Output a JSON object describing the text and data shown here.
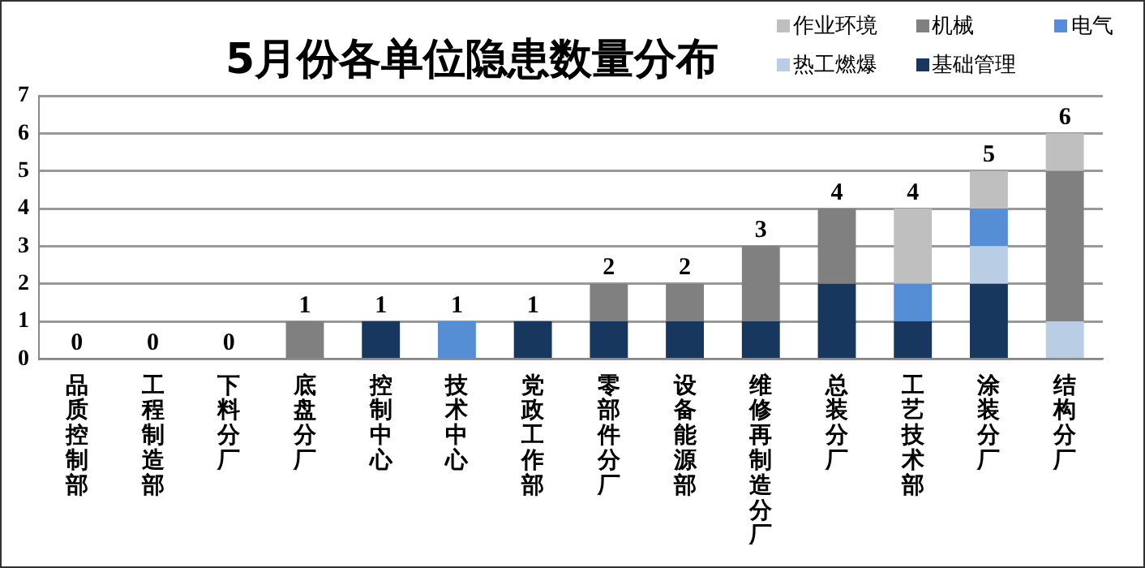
{
  "chart_data": {
    "type": "bar",
    "title": "5月份各单位隐患数量分布",
    "stacked": true,
    "categories": [
      "品质控制部",
      "工程制造部",
      "下料分厂",
      "底盘分厂",
      "控制中心",
      "技术中心",
      "党政工作部",
      "零部件分厂",
      "设备能源部",
      "维修再制造分厂",
      "总装分厂",
      "工艺技术部",
      "涂装分厂",
      "结构分厂"
    ],
    "series": [
      {
        "name": "基础管理",
        "color": "#17375e",
        "values": [
          0,
          0,
          0,
          0,
          1,
          0,
          1,
          1,
          1,
          1,
          2,
          1,
          2,
          0
        ]
      },
      {
        "name": "热工燃爆",
        "color": "#b9cde5",
        "values": [
          0,
          0,
          0,
          0,
          0,
          0,
          0,
          0,
          0,
          0,
          0,
          0,
          1,
          1
        ]
      },
      {
        "name": "电气",
        "color": "#558ed5",
        "values": [
          0,
          0,
          0,
          0,
          0,
          1,
          0,
          0,
          0,
          0,
          0,
          1,
          1,
          0
        ]
      },
      {
        "name": "机械",
        "color": "#808080",
        "values": [
          0,
          0,
          0,
          1,
          0,
          0,
          0,
          1,
          1,
          2,
          2,
          0,
          0,
          4
        ]
      },
      {
        "name": "作业环境",
        "color": "#bfbfbf",
        "values": [
          0,
          0,
          0,
          0,
          0,
          0,
          0,
          0,
          0,
          0,
          0,
          2,
          1,
          1
        ]
      }
    ],
    "totals": [
      "0",
      "0",
      "0",
      "1",
      "1",
      "1",
      "1",
      "2",
      "2",
      "3",
      "4",
      "4",
      "5",
      "6"
    ],
    "ylim": [
      0,
      7
    ],
    "yticks": [
      0,
      1,
      2,
      3,
      4,
      5,
      6,
      7
    ],
    "grid": "y",
    "legend": "top right"
  }
}
